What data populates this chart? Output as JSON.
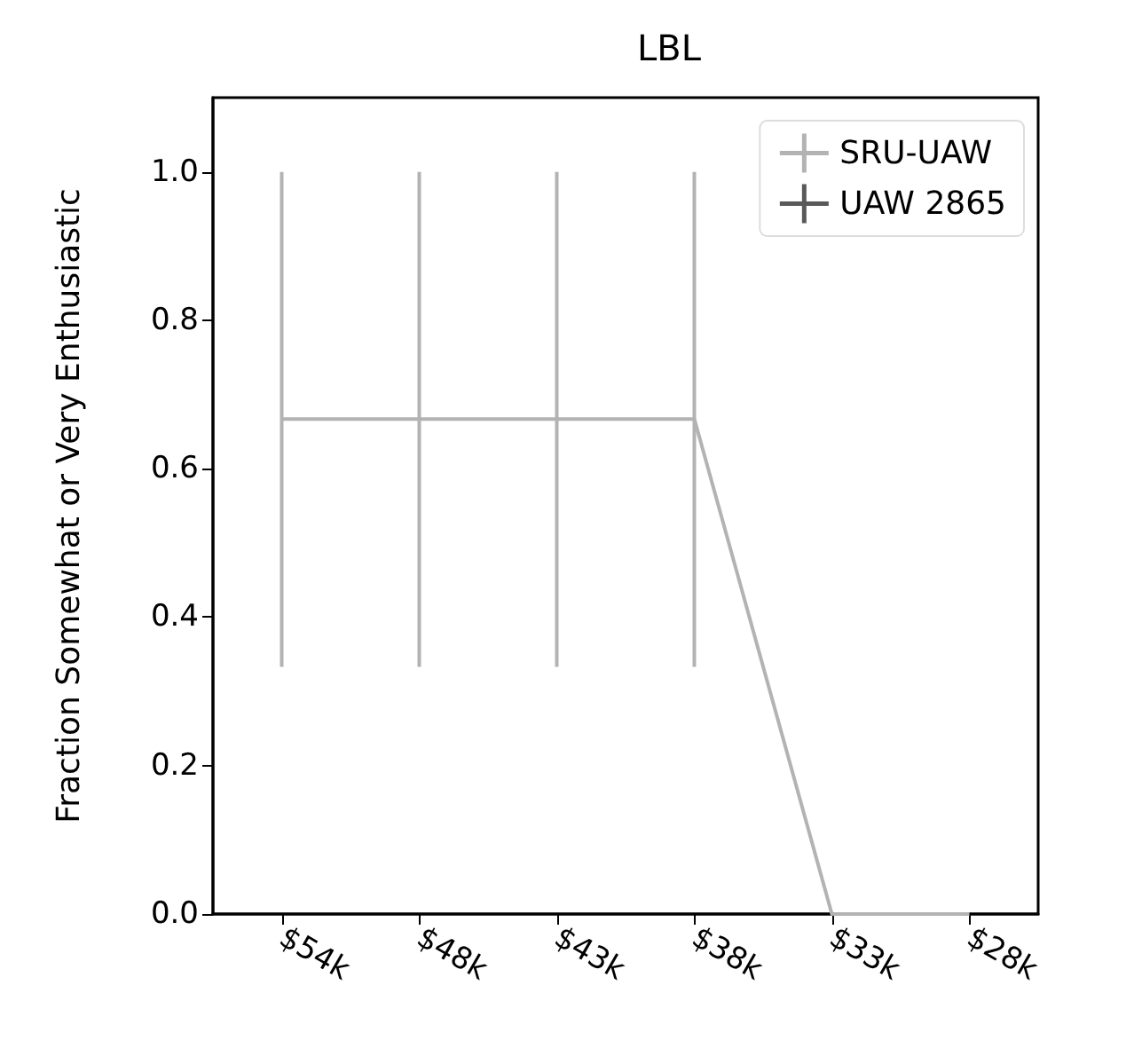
{
  "chart_data": {
    "type": "line",
    "title": "LBL",
    "ylabel": "Fraction Somewhat or Very Enthusiastic",
    "categories": [
      "$54k",
      "$48k",
      "$43k",
      "$38k",
      "$33k",
      "$28k"
    ],
    "series": [
      {
        "name": "SRU-UAW",
        "color": "#b3b3b3",
        "values": [
          0.667,
          0.667,
          0.667,
          0.667,
          0,
          0
        ],
        "errors": [
          [
            0.333,
            1.0
          ],
          [
            0.333,
            1.0
          ],
          [
            0.333,
            1.0
          ],
          [
            0.333,
            1.0
          ],
          null,
          null
        ]
      },
      {
        "name": "UAW 2865",
        "color": "#595959",
        "values": [
          null,
          null,
          null,
          null,
          null,
          null
        ]
      }
    ],
    "ylim": [
      0,
      1.1
    ],
    "yticks": [
      {
        "value": 0,
        "label": "0.0"
      },
      {
        "value": 0.2,
        "label": "0.2"
      },
      {
        "value": 0.4,
        "label": "0.4"
      },
      {
        "value": 0.6,
        "label": "0.6"
      },
      {
        "value": 0.8,
        "label": "0.8"
      },
      {
        "value": 1,
        "label": "1.0"
      }
    ],
    "grid": false,
    "legend": "top right",
    "marker": "none",
    "line_style": "solid"
  }
}
